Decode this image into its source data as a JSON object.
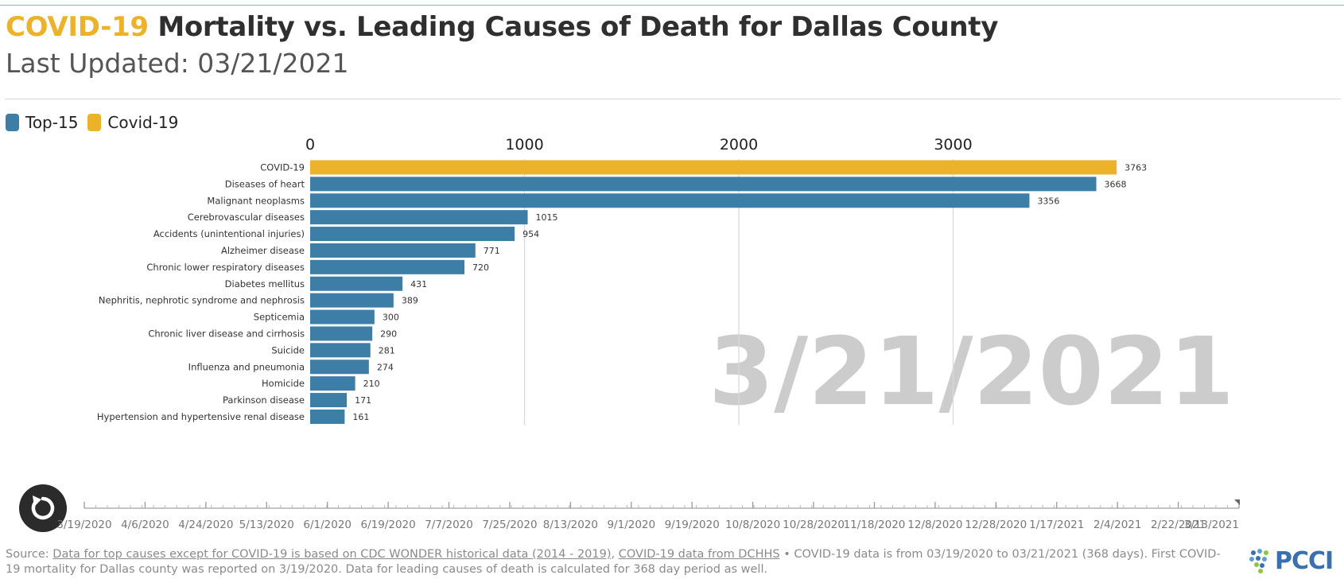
{
  "header": {
    "title_highlight": "COVID-19",
    "title_rest": " Mortality vs. Leading Causes of Death for Dallas County",
    "subtitle": "Last Updated: 03/21/2021"
  },
  "legend": {
    "items": [
      {
        "label": "Top-15",
        "color": "#3d7ea6"
      },
      {
        "label": "Covid-19",
        "color": "#ebb22a"
      }
    ]
  },
  "chart_data": {
    "type": "bar",
    "orientation": "horizontal",
    "categories": [
      "COVID-19",
      "Diseases of heart",
      "Malignant neoplasms",
      "Cerebrovascular diseases",
      "Accidents (unintentional injuries)",
      "Alzheimer disease",
      "Chronic lower respiratory diseases",
      "Diabetes mellitus",
      "Nephritis, nephrotic syndrome and nephrosis",
      "Septicemia",
      "Chronic liver disease and cirrhosis",
      "Suicide",
      "Influenza and pneumonia",
      "Homicide",
      "Parkinson disease",
      "Hypertension and hypertensive renal disease"
    ],
    "values": [
      3763,
      3668,
      3356,
      1015,
      954,
      771,
      720,
      431,
      389,
      300,
      290,
      281,
      274,
      210,
      171,
      161
    ],
    "bar_colors": [
      "#ebb22a",
      "#3d7ea6",
      "#3d7ea6",
      "#3d7ea6",
      "#3d7ea6",
      "#3d7ea6",
      "#3d7ea6",
      "#3d7ea6",
      "#3d7ea6",
      "#3d7ea6",
      "#3d7ea6",
      "#3d7ea6",
      "#3d7ea6",
      "#3d7ea6",
      "#3d7ea6",
      "#3d7ea6"
    ],
    "xlim": [
      0,
      4200
    ],
    "x_ticks": [
      0,
      1000,
      2000,
      3000
    ],
    "x_tick_labels": [
      "0",
      "1000",
      "2000",
      "3000"
    ],
    "grid": true,
    "axis_position": "top",
    "watermark_date": "3/21/2021"
  },
  "timeline": {
    "labels": [
      "3/19/2020",
      "4/6/2020",
      "4/24/2020",
      "5/13/2020",
      "6/1/2020",
      "6/19/2020",
      "7/7/2020",
      "7/25/2020",
      "8/13/2020",
      "9/1/2020",
      "9/19/2020",
      "10/8/2020",
      "10/28/2020",
      "11/18/2020",
      "12/8/2020",
      "12/28/2020",
      "1/17/2021",
      "2/4/2021",
      "2/22/2021",
      "3/13/2021"
    ]
  },
  "colors": {
    "covid": "#ebb22a",
    "top15": "#3d7ea6",
    "grid": "#d9d9d9",
    "watermark": "#cccccc"
  },
  "footer": {
    "source_label": "Source: ",
    "link1": "Data for top causes except for COVID-19 is based on CDC WONDER historical data (2014 - 2019)",
    "sep1": ", ",
    "link2": "COVID-19 data from DCHHS",
    "text": " • COVID-19 data is from 03/19/2020 to 03/21/2021 (368 days). First COVID-19 mortality for Dallas county was reported on 3/19/2020. Data for leading causes of death is calculated for 368 day period as well."
  },
  "logo": {
    "text": "PCCI"
  }
}
